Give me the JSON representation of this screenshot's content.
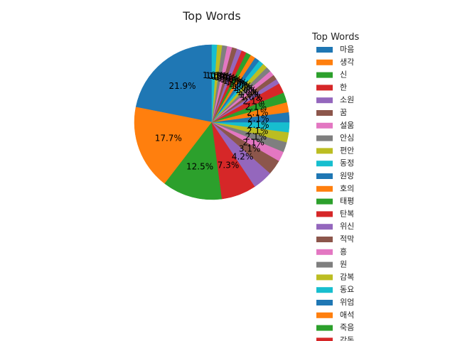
{
  "chart_data": {
    "type": "pie",
    "title": "Top Words",
    "legend": {
      "title": "Top Words",
      "placement": "right"
    },
    "start_angle_deg": 90,
    "direction": "counterclockwise",
    "autopct_format": "{:.1f}%",
    "palette": [
      "#1f77b4",
      "#ff7f0e",
      "#2ca02c",
      "#d62728",
      "#9467bd",
      "#8c564b",
      "#e377c2",
      "#7f7f7f",
      "#bcbd22",
      "#17becf"
    ],
    "slices": [
      {
        "label": "마음",
        "value": 21
      },
      {
        "label": "생각",
        "value": 17
      },
      {
        "label": "신",
        "value": 12
      },
      {
        "label": "한",
        "value": 7
      },
      {
        "label": "소원",
        "value": 4
      },
      {
        "label": "꿈",
        "value": 3
      },
      {
        "label": "설움",
        "value": 2
      },
      {
        "label": "안심",
        "value": 2
      },
      {
        "label": "편안",
        "value": 2
      },
      {
        "label": "동정",
        "value": 2
      },
      {
        "label": "원망",
        "value": 2
      },
      {
        "label": "호의",
        "value": 2
      },
      {
        "label": "태평",
        "value": 2
      },
      {
        "label": "탄복",
        "value": 2
      },
      {
        "label": "위신",
        "value": 1
      },
      {
        "label": "적막",
        "value": 1
      },
      {
        "label": "흥",
        "value": 1
      },
      {
        "label": "원",
        "value": 1
      },
      {
        "label": "감복",
        "value": 1
      },
      {
        "label": "동요",
        "value": 1
      },
      {
        "label": "위엄",
        "value": 1
      },
      {
        "label": "애석",
        "value": 1
      },
      {
        "label": "죽음",
        "value": 1
      },
      {
        "label": "감동",
        "value": 1
      },
      {
        "label": "",
        "value": 1
      },
      {
        "label": "",
        "value": 1
      },
      {
        "label": "",
        "value": 1
      },
      {
        "label": "",
        "value": 1
      },
      {
        "label": "",
        "value": 1
      },
      {
        "label": "",
        "value": 1
      }
    ]
  }
}
